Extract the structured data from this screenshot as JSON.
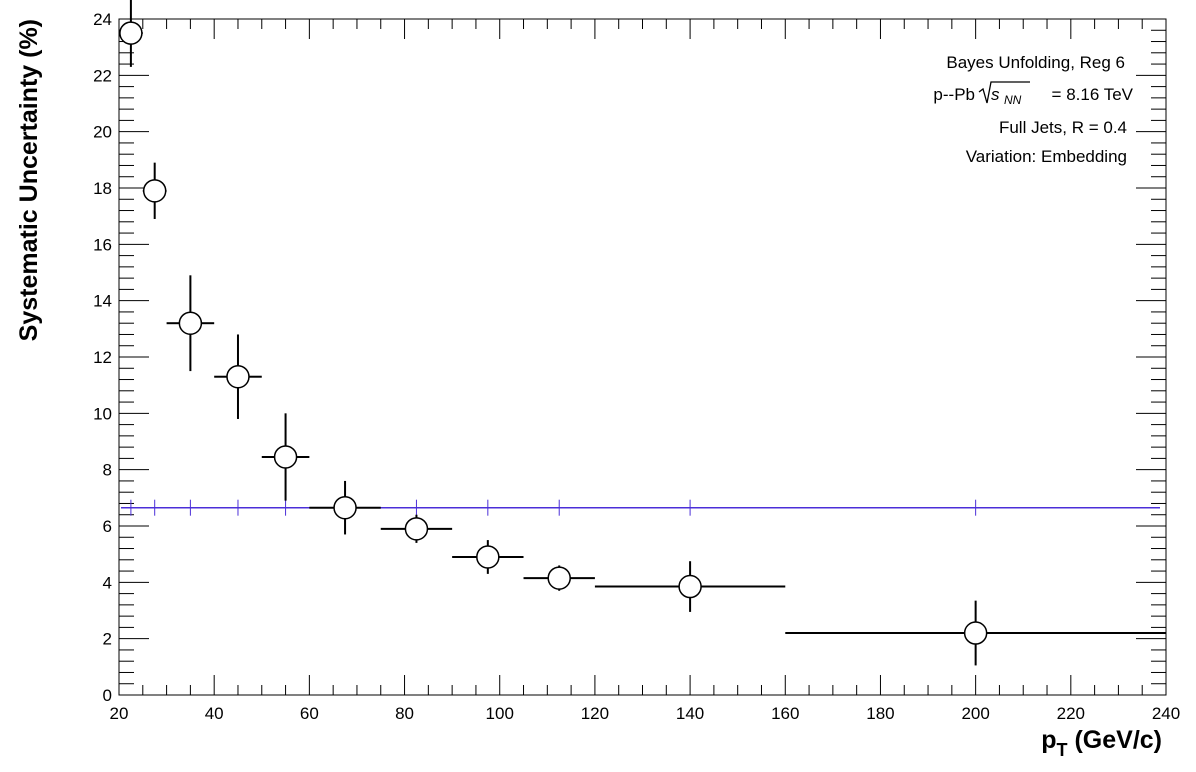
{
  "chart_data": {
    "type": "scatter",
    "title": "",
    "xlabel_main": "p",
    "xlabel_sub": "T",
    "xlabel_units": "(GeV/c)",
    "ylabel": "Systematic Uncertainty (%)",
    "xlim": [
      20,
      240
    ],
    "ylim": [
      0,
      24
    ],
    "x_ticks": [
      20,
      40,
      60,
      80,
      100,
      120,
      140,
      160,
      180,
      200,
      220,
      240
    ],
    "y_ticks": [
      0,
      2,
      4,
      6,
      8,
      10,
      12,
      14,
      16,
      18,
      20,
      22,
      24
    ],
    "grid": false,
    "annotations": {
      "line1": "Bayes Unfolding, Reg 6",
      "line2_prefix": "p--Pb",
      "line2_sqrt": "s",
      "line2_sub": "NN",
      "line2_suffix": "= 8.16 TeV",
      "line3": "Full Jets, R = 0.4",
      "line4": "Variation: Embedding"
    },
    "points": [
      {
        "x": 22.5,
        "xlo": 20,
        "xhi": 25,
        "y": 23.5,
        "yerr": 1.2
      },
      {
        "x": 27.5,
        "xlo": 25,
        "xhi": 30,
        "y": 17.9,
        "yerr": 1.0
      },
      {
        "x": 35,
        "xlo": 30,
        "xhi": 40,
        "y": 13.2,
        "yerr": 1.7
      },
      {
        "x": 45,
        "xlo": 40,
        "xhi": 50,
        "y": 11.3,
        "yerr": 1.5
      },
      {
        "x": 55,
        "xlo": 50,
        "xhi": 60,
        "y": 8.45,
        "yerr": 1.55
      },
      {
        "x": 67.5,
        "xlo": 60,
        "xhi": 75,
        "y": 6.65,
        "yerr": 0.95
      },
      {
        "x": 82.5,
        "xlo": 75,
        "xhi": 90,
        "y": 5.9,
        "yerr": 0.5
      },
      {
        "x": 97.5,
        "xlo": 90,
        "xhi": 105,
        "y": 4.9,
        "yerr": 0.6
      },
      {
        "x": 112.5,
        "xlo": 105,
        "xhi": 120,
        "y": 4.15,
        "yerr": 0.45
      },
      {
        "x": 140,
        "xlo": 120,
        "xhi": 160,
        "y": 3.85,
        "yerr": 0.9
      },
      {
        "x": 200,
        "xlo": 160,
        "xhi": 240,
        "y": 2.2,
        "yerr": 1.15
      }
    ],
    "fit_line": {
      "y": 6.65,
      "color": "#4b2fd8"
    },
    "colors": {
      "markers": "#000000",
      "fit": "#4b2fd8"
    }
  }
}
